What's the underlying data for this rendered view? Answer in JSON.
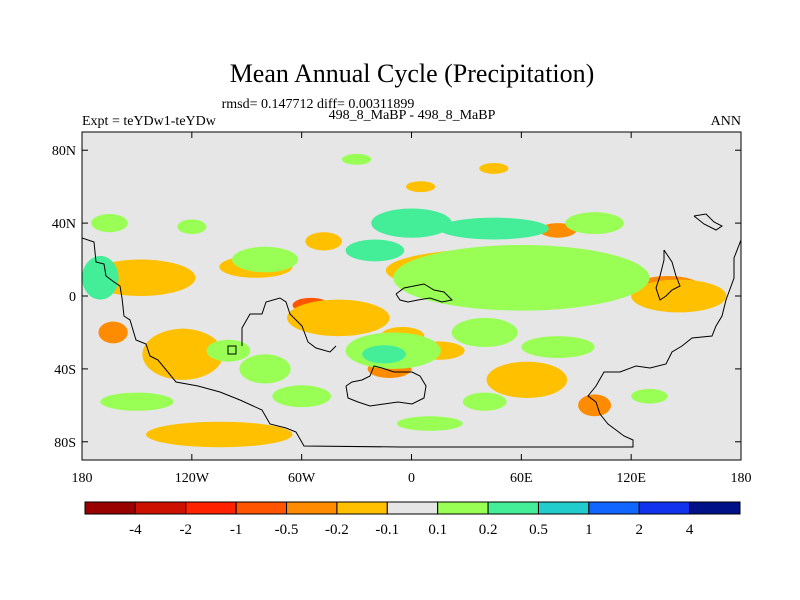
{
  "chart_data": {
    "type": "heatmap",
    "title": "Mean Annual Cycle (Precipitation)",
    "stats_text": "rmsd= 0.147712 diff= 0.00311899",
    "left_label": "Expt = teYDw1-teYDw",
    "center_label": "498_8_MaBP - 498_8_MaBP",
    "right_label": "ANN",
    "x_ticks": [
      "180",
      "120W",
      "60W",
      "0",
      "60E",
      "120E",
      "180"
    ],
    "x_values": [
      -180,
      -120,
      -60,
      0,
      60,
      120,
      180
    ],
    "y_ticks": [
      "80N",
      "40N",
      "0",
      "40S",
      "80S"
    ],
    "y_values": [
      80,
      40,
      0,
      -40,
      -80
    ],
    "xlim": [
      -180,
      180
    ],
    "ylim": [
      -90,
      90
    ],
    "colorbar": {
      "labels": [
        "-4",
        "-2",
        "-1",
        "-0.5",
        "-0.2",
        "-0.1",
        "0.1",
        "0.2",
        "0.5",
        "1",
        "2",
        "4"
      ],
      "colors": [
        "#990000",
        "#cc1100",
        "#ff2200",
        "#ff5500",
        "#ff8c00",
        "#ffc000",
        "#e6e6e6",
        "#99ff55",
        "#44ee99",
        "#22cccc",
        "#1166ff",
        "#1133ee",
        "#001188"
      ]
    },
    "blobs": [
      {
        "lon": 33,
        "lat": 16,
        "rx": 22,
        "ry": 6,
        "color": "#ff8c00"
      },
      {
        "lon": 60,
        "lat": 14,
        "rx": 30,
        "ry": 6,
        "color": "#ff8c00"
      },
      {
        "lon": 95,
        "lat": 12,
        "rx": 14,
        "ry": 4,
        "color": "#ff8c00"
      },
      {
        "lon": 48,
        "lat": 14,
        "rx": 62,
        "ry": 12,
        "color": "#ffc000"
      },
      {
        "lon": 140,
        "lat": 5,
        "rx": 18,
        "ry": 6,
        "color": "#ff8c00"
      },
      {
        "lon": 146,
        "lat": 0,
        "rx": 26,
        "ry": 9,
        "color": "#ffc000"
      },
      {
        "lon": -140,
        "lat": 10,
        "rx": 22,
        "ry": 7,
        "color": "#ff8c00"
      },
      {
        "lon": -148,
        "lat": 10,
        "rx": 30,
        "ry": 10,
        "color": "#ffc000"
      },
      {
        "lon": -85,
        "lat": 16,
        "rx": 20,
        "ry": 6,
        "color": "#ffc000"
      },
      {
        "lon": -48,
        "lat": 30,
        "rx": 10,
        "ry": 5,
        "color": "#ffc000"
      },
      {
        "lon": -163,
        "lat": -20,
        "rx": 8,
        "ry": 6,
        "color": "#ff8c00"
      },
      {
        "lon": -125,
        "lat": -28,
        "rx": 15,
        "ry": 10,
        "color": "#ff8c00"
      },
      {
        "lon": -125,
        "lat": -32,
        "rx": 22,
        "ry": 14,
        "color": "#ffc000"
      },
      {
        "lon": -55,
        "lat": -5,
        "rx": 10,
        "ry": 4,
        "color": "#ff5500"
      },
      {
        "lon": -35,
        "lat": -12,
        "rx": 14,
        "ry": 6,
        "color": "#ff8c00"
      },
      {
        "lon": -40,
        "lat": -12,
        "rx": 28,
        "ry": 10,
        "color": "#ffc000"
      },
      {
        "lon": -5,
        "lat": -22,
        "rx": 12,
        "ry": 5,
        "color": "#ffc000"
      },
      {
        "lon": -12,
        "lat": -40,
        "rx": 12,
        "ry": 5,
        "color": "#ff8c00"
      },
      {
        "lon": 15,
        "lat": -30,
        "rx": 14,
        "ry": 5,
        "color": "#ffc000"
      },
      {
        "lon": 65,
        "lat": -45,
        "rx": 14,
        "ry": 6,
        "color": "#ff8c00"
      },
      {
        "lon": 63,
        "lat": -46,
        "rx": 22,
        "ry": 10,
        "color": "#ffc000"
      },
      {
        "lon": 100,
        "lat": -60,
        "rx": 9,
        "ry": 6,
        "color": "#ff8c00"
      },
      {
        "lon": -110,
        "lat": -75,
        "rx": 26,
        "ry": 5,
        "color": "#ff8c00"
      },
      {
        "lon": -105,
        "lat": -76,
        "rx": 40,
        "ry": 7,
        "color": "#ffc000"
      },
      {
        "lon": 5,
        "lat": 60,
        "rx": 8,
        "ry": 3,
        "color": "#ffc000"
      },
      {
        "lon": 45,
        "lat": 70,
        "rx": 8,
        "ry": 3,
        "color": "#ffc000"
      },
      {
        "lon": 80,
        "lat": 36,
        "rx": 10,
        "ry": 4,
        "color": "#ff8c00"
      },
      {
        "lon": 0,
        "lat": 40,
        "rx": 22,
        "ry": 8,
        "color": "#44ee99"
      },
      {
        "lon": 45,
        "lat": 37,
        "rx": 30,
        "ry": 6,
        "color": "#44ee99"
      },
      {
        "lon": 100,
        "lat": 40,
        "rx": 16,
        "ry": 6,
        "color": "#99ff55"
      },
      {
        "lon": -165,
        "lat": 40,
        "rx": 10,
        "ry": 5,
        "color": "#99ff55"
      },
      {
        "lon": -120,
        "lat": 38,
        "rx": 8,
        "ry": 4,
        "color": "#99ff55"
      },
      {
        "lon": 60,
        "lat": 10,
        "rx": 70,
        "ry": 18,
        "color": "#99ff55"
      },
      {
        "lon": -80,
        "lat": 20,
        "rx": 18,
        "ry": 7,
        "color": "#99ff55"
      },
      {
        "lon": -20,
        "lat": 25,
        "rx": 16,
        "ry": 6,
        "color": "#44ee99"
      },
      {
        "lon": -170,
        "lat": 10,
        "rx": 10,
        "ry": 12,
        "color": "#44ee99"
      },
      {
        "lon": -10,
        "lat": -30,
        "rx": 26,
        "ry": 10,
        "color": "#99ff55"
      },
      {
        "lon": -15,
        "lat": -32,
        "rx": 12,
        "ry": 5,
        "color": "#44ee99"
      },
      {
        "lon": 40,
        "lat": -20,
        "rx": 18,
        "ry": 8,
        "color": "#99ff55"
      },
      {
        "lon": 80,
        "lat": -28,
        "rx": 20,
        "ry": 6,
        "color": "#99ff55"
      },
      {
        "lon": -80,
        "lat": -40,
        "rx": 14,
        "ry": 8,
        "color": "#99ff55"
      },
      {
        "lon": -100,
        "lat": -30,
        "rx": 12,
        "ry": 6,
        "color": "#99ff55"
      },
      {
        "lon": -60,
        "lat": -55,
        "rx": 16,
        "ry": 6,
        "color": "#99ff55"
      },
      {
        "lon": 40,
        "lat": -58,
        "rx": 12,
        "ry": 5,
        "color": "#99ff55"
      },
      {
        "lon": -150,
        "lat": -58,
        "rx": 20,
        "ry": 5,
        "color": "#99ff55"
      },
      {
        "lon": -30,
        "lat": 75,
        "rx": 8,
        "ry": 3,
        "color": "#99ff55"
      },
      {
        "lon": 10,
        "lat": -70,
        "rx": 18,
        "ry": 4,
        "color": "#99ff55"
      },
      {
        "lon": 130,
        "lat": -55,
        "rx": 10,
        "ry": 4,
        "color": "#99ff55"
      }
    ]
  }
}
